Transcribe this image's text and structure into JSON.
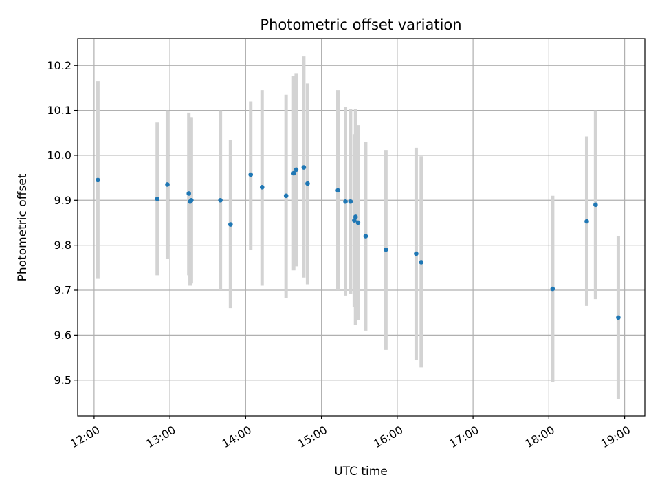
{
  "chart_data": {
    "type": "scatter",
    "title": "Photometric offset variation",
    "xlabel": "UTC time",
    "ylabel": "Photometric offset",
    "xlim": [
      "11:47",
      "19:16"
    ],
    "ylim": [
      9.42,
      10.26
    ],
    "x_ticks": [
      "12:00",
      "13:00",
      "14:00",
      "15:00",
      "16:00",
      "17:00",
      "18:00",
      "19:00"
    ],
    "y_ticks": [
      "9.5",
      "9.6",
      "9.7",
      "9.8",
      "9.9",
      "10.0",
      "10.1",
      "10.2"
    ],
    "grid": true,
    "point_color": "#1f77b4",
    "errorbar_color": "#d3d3d3",
    "points": [
      {
        "x": "12:03",
        "y": 9.945,
        "ylow": 9.725,
        "yhigh": 10.165
      },
      {
        "x": "12:50",
        "y": 9.903,
        "ylow": 9.733,
        "yhigh": 10.073
      },
      {
        "x": "12:58",
        "y": 9.935,
        "ylow": 9.77,
        "yhigh": 10.1
      },
      {
        "x": "13:15",
        "y": 9.915,
        "ylow": 9.733,
        "yhigh": 10.095
      },
      {
        "x": "13:16",
        "y": 9.897,
        "ylow": 9.71,
        "yhigh": 10.085
      },
      {
        "x": "13:17",
        "y": 9.9,
        "ylow": 9.715,
        "yhigh": 10.085
      },
      {
        "x": "13:40",
        "y": 9.9,
        "ylow": 9.7,
        "yhigh": 10.1
      },
      {
        "x": "13:48",
        "y": 9.846,
        "ylow": 9.66,
        "yhigh": 10.034
      },
      {
        "x": "14:04",
        "y": 9.957,
        "ylow": 9.79,
        "yhigh": 10.12
      },
      {
        "x": "14:13",
        "y": 9.929,
        "ylow": 9.71,
        "yhigh": 10.145
      },
      {
        "x": "14:32",
        "y": 9.91,
        "ylow": 9.683,
        "yhigh": 10.135
      },
      {
        "x": "14:38",
        "y": 9.96,
        "ylow": 9.744,
        "yhigh": 10.176
      },
      {
        "x": "14:40",
        "y": 9.968,
        "ylow": 9.753,
        "yhigh": 10.183
      },
      {
        "x": "14:46",
        "y": 9.973,
        "ylow": 9.728,
        "yhigh": 10.22
      },
      {
        "x": "14:49",
        "y": 9.937,
        "ylow": 9.713,
        "yhigh": 10.16
      },
      {
        "x": "15:13",
        "y": 9.922,
        "ylow": 9.7,
        "yhigh": 10.145
      },
      {
        "x": "15:19",
        "y": 9.897,
        "ylow": 9.688,
        "yhigh": 10.107
      },
      {
        "x": "15:23",
        "y": 9.897,
        "ylow": 9.692,
        "yhigh": 10.103
      },
      {
        "x": "15:26",
        "y": 9.855,
        "ylow": 9.663,
        "yhigh": 10.047
      },
      {
        "x": "15:27",
        "y": 9.863,
        "ylow": 9.623,
        "yhigh": 10.103
      },
      {
        "x": "15:29",
        "y": 9.85,
        "ylow": 9.633,
        "yhigh": 10.067
      },
      {
        "x": "15:35",
        "y": 9.82,
        "ylow": 9.61,
        "yhigh": 10.03
      },
      {
        "x": "15:51",
        "y": 9.79,
        "ylow": 9.567,
        "yhigh": 10.012
      },
      {
        "x": "16:15",
        "y": 9.781,
        "ylow": 9.545,
        "yhigh": 10.017
      },
      {
        "x": "16:19",
        "y": 9.762,
        "ylow": 9.528,
        "yhigh": 9.998
      },
      {
        "x": "18:03",
        "y": 9.703,
        "ylow": 9.496,
        "yhigh": 9.91
      },
      {
        "x": "18:30",
        "y": 9.853,
        "ylow": 9.665,
        "yhigh": 10.042
      },
      {
        "x": "18:37",
        "y": 9.89,
        "ylow": 9.68,
        "yhigh": 10.1
      },
      {
        "x": "18:55",
        "y": 9.639,
        "ylow": 9.458,
        "yhigh": 9.82
      }
    ]
  }
}
